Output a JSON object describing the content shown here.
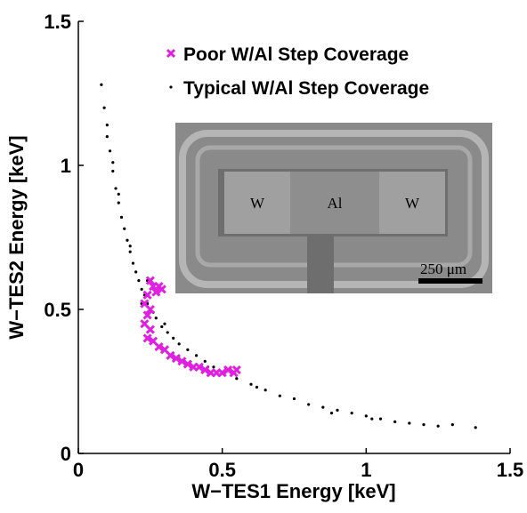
{
  "chart_data": {
    "type": "scatter",
    "xlabel": "W−TES1 Energy [keV]",
    "ylabel": "W−TES2 Energy [keV]",
    "xlim": [
      0,
      1.5
    ],
    "ylim": [
      0,
      1.5
    ],
    "xticks": [
      0,
      0.5,
      1,
      1.5
    ],
    "yticks": [
      0,
      0.5,
      1,
      1.5
    ],
    "legend": "upper right",
    "inset_labels": [
      "W",
      "Al",
      "W"
    ],
    "scale_bar_label": "250 μm",
    "series": [
      {
        "name": "Poor W/Al Step Coverage",
        "color": "#e020e0",
        "marker": "x",
        "x": [
          0.25,
          0.26,
          0.28,
          0.27,
          0.24,
          0.23,
          0.24,
          0.23,
          0.25,
          0.24,
          0.26,
          0.28,
          0.3,
          0.32,
          0.34,
          0.36,
          0.38,
          0.4,
          0.42,
          0.44,
          0.46,
          0.48,
          0.5,
          0.52,
          0.54,
          0.55,
          0.29,
          0.25
        ],
        "values": [
          0.6,
          0.58,
          0.58,
          0.56,
          0.55,
          0.52,
          0.48,
          0.45,
          0.43,
          0.4,
          0.39,
          0.37,
          0.36,
          0.34,
          0.33,
          0.32,
          0.31,
          0.3,
          0.3,
          0.29,
          0.28,
          0.28,
          0.28,
          0.29,
          0.28,
          0.29,
          0.57,
          0.5
        ]
      },
      {
        "name": "Typical W/Al Step Coverage",
        "color": "#000000",
        "marker": "dot",
        "x": [
          0.08,
          0.09,
          0.1,
          0.1,
          0.11,
          0.12,
          0.12,
          0.13,
          0.14,
          0.14,
          0.15,
          0.16,
          0.17,
          0.18,
          0.18,
          0.19,
          0.2,
          0.21,
          0.22,
          0.23,
          0.24,
          0.25,
          0.26,
          0.27,
          0.29,
          0.31,
          0.33,
          0.35,
          0.38,
          0.41,
          0.44,
          0.47,
          0.5,
          0.55,
          0.6,
          0.65,
          0.7,
          0.75,
          0.8,
          0.85,
          0.9,
          0.95,
          1.0,
          1.05,
          1.1,
          1.15,
          1.2,
          1.25,
          1.3,
          1.38,
          0.24,
          0.22,
          0.3,
          0.45,
          0.62,
          0.88,
          1.02
        ],
        "values": [
          1.28,
          1.2,
          1.1,
          1.14,
          1.05,
          0.98,
          1.01,
          0.92,
          0.87,
          0.9,
          0.82,
          0.78,
          0.74,
          0.7,
          0.72,
          0.66,
          0.63,
          0.6,
          0.57,
          0.55,
          0.52,
          0.5,
          0.49,
          0.47,
          0.44,
          0.42,
          0.4,
          0.38,
          0.36,
          0.34,
          0.32,
          0.3,
          0.28,
          0.26,
          0.24,
          0.22,
          0.2,
          0.19,
          0.17,
          0.16,
          0.15,
          0.14,
          0.13,
          0.12,
          0.11,
          0.105,
          0.1,
          0.095,
          0.1,
          0.09,
          0.6,
          0.52,
          0.45,
          0.3,
          0.23,
          0.14,
          0.12
        ]
      }
    ]
  }
}
